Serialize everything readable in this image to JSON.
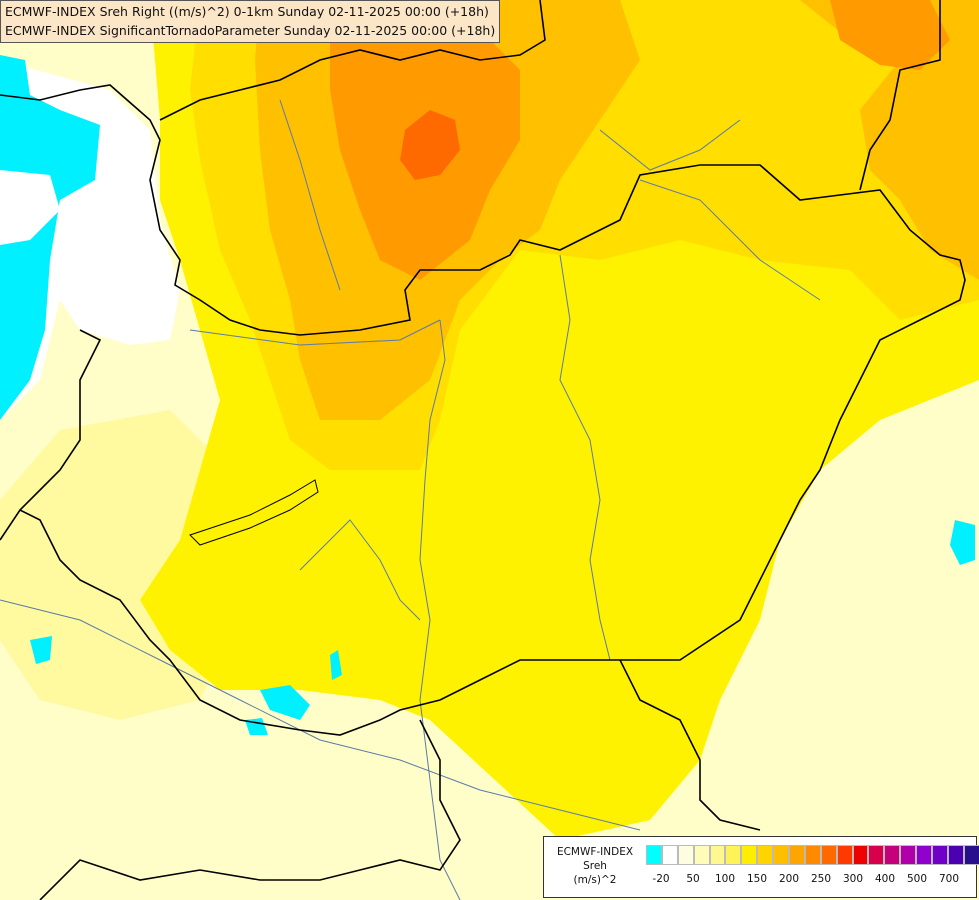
{
  "header": {
    "line1": "ECMWF-INDEX Sreh Right ((m/s)^2) 0-1km Sunday 02-11-2025 00:00 (+18h)",
    "line2": "ECMWF-INDEX SignificantTornadoParameter Sunday 02-11-2025 00:00 (+18h)"
  },
  "legend": {
    "line1": "ECMWF-INDEX",
    "line2": "Sreh",
    "line3": "(m/s)^2",
    "colors": [
      "#00ffff",
      "#ffffff",
      "#fffde0",
      "#fffbb8",
      "#fff890",
      "#fff358",
      "#ffee00",
      "#ffd400",
      "#ffbe00",
      "#ffa500",
      "#ff8a00",
      "#ff6a00",
      "#ff3a00",
      "#ee0000",
      "#d8004a",
      "#c4007a",
      "#b000a8",
      "#9000cc",
      "#7000c8",
      "#4a00b0",
      "#28108c",
      "#000080"
    ],
    "ticks": [
      "-20",
      "50",
      "100",
      "150",
      "200",
      "250",
      "300",
      "400",
      "500",
      "700"
    ]
  },
  "palette": {
    "cyan": "#00f0ff",
    "pale": "#fffdc8",
    "light_yellow": "#fff9a0",
    "yellow": "#fff200",
    "golden": "#ffde00",
    "amber": "#ffc000",
    "orange": "#ff9a00",
    "dark_orange": "#ff6a00",
    "border": "#000000",
    "river": "#5a7aa8"
  }
}
